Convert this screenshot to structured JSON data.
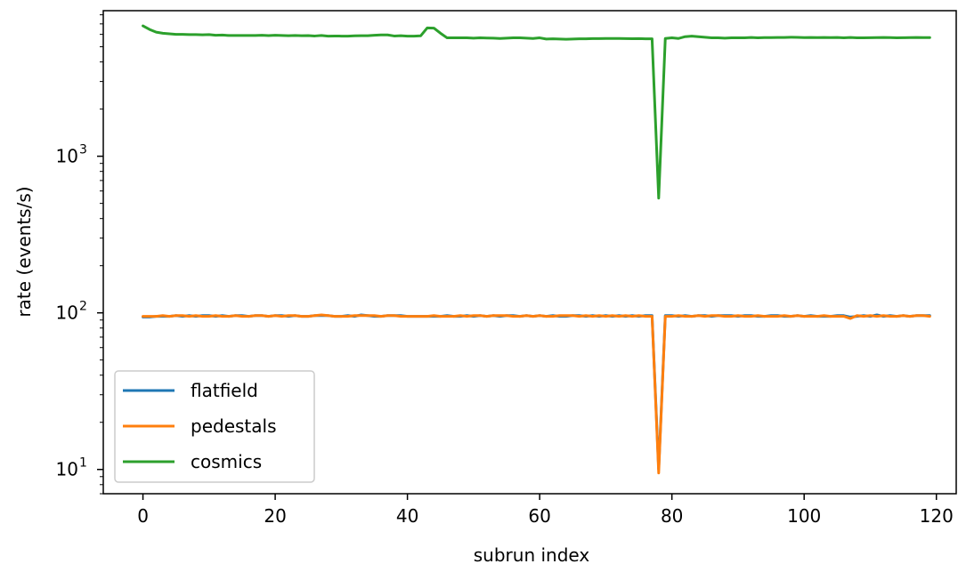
{
  "chart_data": {
    "type": "line",
    "xlabel": "subrun index",
    "ylabel": "rate (events/s)",
    "yscale": "log",
    "xlim": [
      -6,
      123
    ],
    "ylim": [
      7,
      8500
    ],
    "x_ticks": [
      0,
      20,
      40,
      60,
      80,
      100,
      120
    ],
    "x_tick_labels": [
      "0",
      "20",
      "40",
      "60",
      "80",
      "100",
      "120"
    ],
    "y_major_ticks": [
      10,
      100,
      1000
    ],
    "y_tick_labels": [
      {
        "base": "10",
        "exp": "1"
      },
      {
        "base": "10",
        "exp": "2"
      },
      {
        "base": "10",
        "exp": "3"
      }
    ],
    "grid": false,
    "legend_position": "lower-left",
    "colors": {
      "flatfield": "#1f77b4",
      "pedestals": "#ff7f0e",
      "cosmics": "#2ca02c"
    },
    "series": [
      {
        "name": "flatfield",
        "color": "#1f77b4",
        "x": [
          0,
          1,
          2,
          3,
          4,
          5,
          6,
          7,
          8,
          9,
          10,
          11,
          12,
          13,
          14,
          15,
          16,
          17,
          18,
          19,
          20,
          21,
          22,
          23,
          24,
          25,
          26,
          27,
          28,
          29,
          30,
          31,
          32,
          33,
          34,
          35,
          36,
          37,
          38,
          39,
          40,
          41,
          42,
          43,
          44,
          45,
          46,
          47,
          48,
          49,
          50,
          51,
          52,
          53,
          54,
          55,
          56,
          57,
          58,
          59,
          60,
          61,
          62,
          63,
          64,
          65,
          66,
          67,
          68,
          69,
          70,
          71,
          72,
          73,
          74,
          75,
          76,
          77,
          78,
          79,
          80,
          81,
          82,
          83,
          84,
          85,
          86,
          87,
          88,
          89,
          90,
          91,
          92,
          93,
          94,
          95,
          96,
          97,
          98,
          99,
          100,
          101,
          102,
          103,
          104,
          105,
          106,
          107,
          108,
          109,
          110,
          111,
          112,
          113,
          114,
          115,
          116,
          117,
          118,
          119
        ],
        "y": [
          94,
          94,
          95,
          95,
          95,
          96,
          95,
          96,
          95,
          96,
          96,
          95,
          96,
          95,
          96,
          96,
          95,
          96,
          96,
          95,
          96,
          96,
          95,
          96,
          95,
          95,
          96,
          96,
          96,
          95,
          95,
          96,
          95,
          97,
          96,
          95,
          95,
          96,
          96,
          96,
          95,
          95,
          95,
          95,
          95,
          95,
          96,
          95,
          95,
          96,
          95,
          96,
          95,
          96,
          95,
          96,
          96,
          95,
          96,
          95,
          96,
          95,
          96,
          95,
          95,
          96,
          96,
          95,
          96,
          95,
          96,
          95,
          96,
          95,
          96,
          95,
          96,
          96,
          10,
          96,
          96,
          95,
          96,
          95,
          96,
          96,
          95,
          96,
          96,
          96,
          95,
          96,
          96,
          95,
          95,
          96,
          96,
          95,
          95,
          96,
          95,
          96,
          95,
          95,
          95,
          96,
          96,
          94,
          95,
          96,
          95,
          97,
          95,
          96,
          95,
          96,
          95,
          96,
          96,
          96
        ]
      },
      {
        "name": "pedestals",
        "color": "#ff7f0e",
        "x": [
          0,
          1,
          2,
          3,
          4,
          5,
          6,
          7,
          8,
          9,
          10,
          11,
          12,
          13,
          14,
          15,
          16,
          17,
          18,
          19,
          20,
          21,
          22,
          23,
          24,
          25,
          26,
          27,
          28,
          29,
          30,
          31,
          32,
          33,
          34,
          35,
          36,
          37,
          38,
          39,
          40,
          41,
          42,
          43,
          44,
          45,
          46,
          47,
          48,
          49,
          50,
          51,
          52,
          53,
          54,
          55,
          56,
          57,
          58,
          59,
          60,
          61,
          62,
          63,
          64,
          65,
          66,
          67,
          68,
          69,
          70,
          71,
          72,
          73,
          74,
          75,
          76,
          77,
          78,
          79,
          80,
          81,
          82,
          83,
          84,
          85,
          86,
          87,
          88,
          89,
          90,
          91,
          92,
          93,
          94,
          95,
          96,
          97,
          98,
          99,
          100,
          101,
          102,
          103,
          104,
          105,
          106,
          107,
          108,
          109,
          110,
          111,
          112,
          113,
          114,
          115,
          116,
          117,
          118,
          119
        ],
        "y": [
          95,
          95,
          95,
          96,
          95,
          96,
          96,
          95,
          96,
          95,
          95,
          96,
          95,
          95,
          96,
          95,
          95,
          96,
          96,
          95,
          96,
          95,
          96,
          96,
          95,
          95,
          96,
          97,
          96,
          95,
          95,
          95,
          96,
          96,
          96,
          96,
          95,
          96,
          96,
          95,
          95,
          95,
          95,
          95,
          96,
          95,
          95,
          95,
          96,
          95,
          96,
          96,
          95,
          96,
          96,
          96,
          95,
          95,
          96,
          95,
          96,
          95,
          95,
          96,
          96,
          96,
          95,
          96,
          95,
          96,
          95,
          96,
          95,
          96,
          95,
          96,
          95,
          95,
          9.5,
          95,
          95,
          96,
          95,
          95,
          96,
          95,
          96,
          96,
          95,
          95,
          96,
          95,
          95,
          96,
          95,
          95,
          95,
          96,
          95,
          96,
          95,
          95,
          95,
          96,
          95,
          95,
          95,
          92,
          96,
          95,
          96,
          95,
          96,
          95,
          95,
          96,
          95,
          96,
          96,
          95
        ]
      },
      {
        "name": "cosmics",
        "color": "#2ca02c",
        "x": [
          0,
          1,
          2,
          3,
          4,
          5,
          6,
          7,
          8,
          9,
          10,
          11,
          12,
          13,
          14,
          15,
          16,
          17,
          18,
          19,
          20,
          21,
          22,
          23,
          24,
          25,
          26,
          27,
          28,
          29,
          30,
          31,
          32,
          33,
          34,
          35,
          36,
          37,
          38,
          39,
          40,
          41,
          42,
          43,
          44,
          45,
          46,
          47,
          48,
          49,
          50,
          51,
          52,
          53,
          54,
          55,
          56,
          57,
          58,
          59,
          60,
          61,
          62,
          63,
          64,
          65,
          66,
          67,
          68,
          69,
          70,
          71,
          72,
          73,
          74,
          75,
          76,
          77,
          78,
          79,
          80,
          81,
          82,
          83,
          84,
          85,
          86,
          87,
          88,
          89,
          90,
          91,
          92,
          93,
          94,
          95,
          96,
          97,
          98,
          99,
          100,
          101,
          102,
          103,
          104,
          105,
          106,
          107,
          108,
          109,
          110,
          111,
          112,
          113,
          114,
          115,
          116,
          117,
          118,
          119
        ],
        "y": [
          6800,
          6450,
          6200,
          6100,
          6050,
          6000,
          6000,
          5980,
          5980,
          5960,
          5980,
          5920,
          5940,
          5900,
          5900,
          5900,
          5900,
          5900,
          5920,
          5890,
          5920,
          5900,
          5880,
          5900,
          5880,
          5890,
          5860,
          5900,
          5850,
          5860,
          5850,
          5850,
          5870,
          5880,
          5880,
          5920,
          5950,
          5950,
          5860,
          5880,
          5850,
          5850,
          5870,
          6600,
          6580,
          6100,
          5700,
          5700,
          5700,
          5700,
          5680,
          5700,
          5690,
          5680,
          5650,
          5680,
          5700,
          5700,
          5680,
          5650,
          5700,
          5600,
          5620,
          5600,
          5580,
          5600,
          5620,
          5620,
          5640,
          5640,
          5650,
          5650,
          5650,
          5640,
          5630,
          5640,
          5620,
          5620,
          540,
          5650,
          5700,
          5650,
          5800,
          5850,
          5800,
          5750,
          5700,
          5700,
          5680,
          5700,
          5700,
          5700,
          5730,
          5700,
          5720,
          5720,
          5730,
          5730,
          5750,
          5740,
          5720,
          5730,
          5720,
          5730,
          5720,
          5730,
          5700,
          5730,
          5700,
          5700,
          5710,
          5720,
          5730,
          5720,
          5700,
          5710,
          5720,
          5730,
          5720,
          5720
        ]
      }
    ]
  }
}
